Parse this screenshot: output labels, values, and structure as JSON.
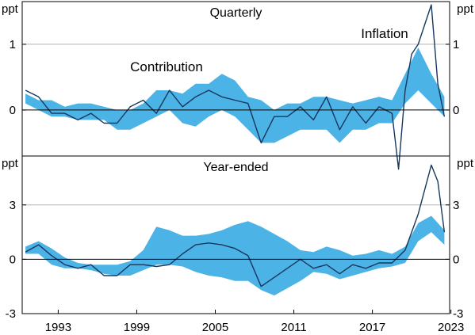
{
  "colors": {
    "band": "#4cb3e6",
    "line": "#17375e",
    "label_contribution": "#4cb3e6",
    "label_inflation": "#17375e",
    "grid": "#b3b3b3",
    "frame": "#000000"
  },
  "chart_data": {
    "type": "area",
    "x_ticks": [
      "1993",
      "1999",
      "2005",
      "2011",
      "2017",
      "2023"
    ],
    "x_range": [
      1990.75,
      2023.4
    ],
    "annotations": {
      "contribution": "Contribution",
      "inflation": "Inflation"
    },
    "panels": [
      {
        "key": "quarterly",
        "title": "Quarterly",
        "left_unit": "ppt",
        "right_unit": "ppt",
        "ylim": [
          -0.7,
          1.65
        ],
        "y_ticks": [
          {
            "v": 1,
            "label": "1"
          },
          {
            "v": 0,
            "label": "0"
          }
        ],
        "grid_at": [
          1
        ],
        "series": [
          {
            "name": "Inflation",
            "type": "line",
            "x": [
              1991.0,
              1992.0,
              1993.0,
              1994.0,
              1995.0,
              1996.0,
              1997.0,
              1998.0,
              1999.0,
              2000.0,
              2001.0,
              2002.0,
              2003.0,
              2004.0,
              2005.0,
              2006.0,
              2007.0,
              2008.0,
              2009.0,
              2010.0,
              2011.0,
              2012.0,
              2013.0,
              2014.0,
              2015.0,
              2016.0,
              2017.0,
              2018.0,
              2019.0,
              2019.5,
              2020.0,
              2020.5,
              2021.0,
              2021.5,
              2022.0,
              2022.5,
              2023.0
            ],
            "values": [
              0.3,
              0.2,
              -0.05,
              -0.05,
              -0.15,
              -0.05,
              -0.2,
              -0.2,
              0.05,
              0.15,
              -0.05,
              0.3,
              0.05,
              0.2,
              0.3,
              0.2,
              0.15,
              0.1,
              -0.5,
              -0.1,
              -0.1,
              0.05,
              -0.15,
              0.2,
              -0.3,
              0.05,
              -0.2,
              0.05,
              -0.05,
              -0.9,
              0.3,
              0.85,
              1.0,
              1.3,
              1.6,
              0.4,
              -0.1
            ]
          },
          {
            "name": "Contribution",
            "type": "band",
            "x": [
              1991.0,
              1992.0,
              1993.0,
              1994.0,
              1995.0,
              1996.0,
              1997.0,
              1998.0,
              1999.0,
              2000.0,
              2001.0,
              2002.0,
              2003.0,
              2004.0,
              2005.0,
              2006.0,
              2007.0,
              2008.0,
              2009.0,
              2010.0,
              2011.0,
              2012.0,
              2013.0,
              2014.0,
              2015.0,
              2016.0,
              2017.0,
              2018.0,
              2019.0,
              2020.0,
              2021.0,
              2022.0,
              2023.0
            ],
            "lower": [
              0.1,
              0.0,
              -0.1,
              -0.1,
              -0.15,
              -0.15,
              -0.15,
              -0.3,
              -0.3,
              -0.2,
              -0.1,
              0.0,
              -0.2,
              -0.25,
              -0.1,
              0.0,
              -0.1,
              -0.3,
              -0.5,
              -0.5,
              -0.4,
              -0.3,
              -0.3,
              -0.3,
              -0.5,
              -0.3,
              -0.3,
              -0.2,
              -0.2,
              0.1,
              0.3,
              0.1,
              -0.1
            ],
            "upper": [
              0.25,
              0.15,
              0.15,
              0.05,
              0.1,
              0.1,
              0.05,
              0.0,
              0.0,
              0.1,
              0.3,
              0.3,
              0.25,
              0.4,
              0.4,
              0.55,
              0.45,
              0.2,
              0.15,
              0.0,
              0.1,
              0.1,
              0.2,
              0.2,
              0.15,
              0.1,
              0.15,
              0.2,
              0.15,
              0.55,
              0.95,
              0.55,
              0.2
            ]
          }
        ]
      },
      {
        "key": "year_ended",
        "title": "Year-ended",
        "left_unit": "ppt",
        "right_unit": "ppt",
        "ylim": [
          -3,
          5.7
        ],
        "y_ticks": [
          {
            "v": 3,
            "label": "3"
          },
          {
            "v": 0,
            "label": "0"
          },
          {
            "v": -3,
            "label": "-3"
          }
        ],
        "grid_at": [
          3
        ],
        "series": [
          {
            "name": "Inflation",
            "type": "line",
            "x": [
              1991.0,
              1992.0,
              1993.0,
              1994.0,
              1995.0,
              1996.0,
              1997.0,
              1998.0,
              1999.0,
              2000.0,
              2001.0,
              2002.0,
              2003.0,
              2004.0,
              2005.0,
              2006.0,
              2007.0,
              2008.0,
              2009.0,
              2010.0,
              2011.0,
              2012.0,
              2013.0,
              2014.0,
              2015.0,
              2016.0,
              2017.0,
              2018.0,
              2019.0,
              2020.0,
              2021.0,
              2022.0,
              2022.5,
              2023.0
            ],
            "values": [
              0.4,
              0.8,
              0.2,
              -0.3,
              -0.5,
              -0.3,
              -0.9,
              -0.9,
              -0.3,
              -0.3,
              -0.4,
              -0.3,
              0.3,
              0.8,
              0.9,
              0.8,
              0.6,
              0.2,
              -1.5,
              -1.0,
              -0.5,
              0.0,
              -0.5,
              -0.3,
              -0.8,
              -0.3,
              -0.5,
              -0.2,
              -0.2,
              0.5,
              2.5,
              5.2,
              4.3,
              1.5
            ]
          },
          {
            "name": "Contribution",
            "type": "band",
            "x": [
              1991.0,
              1992.0,
              1993.0,
              1994.0,
              1995.0,
              1996.0,
              1997.0,
              1998.0,
              1999.0,
              2000.0,
              2001.0,
              2002.0,
              2003.0,
              2004.0,
              2005.0,
              2006.0,
              2007.0,
              2008.0,
              2009.0,
              2010.0,
              2011.0,
              2012.0,
              2013.0,
              2014.0,
              2015.0,
              2016.0,
              2017.0,
              2018.0,
              2019.0,
              2020.0,
              2021.0,
              2022.0,
              2023.0
            ],
            "lower": [
              0.3,
              0.3,
              -0.3,
              -0.5,
              -0.5,
              -0.6,
              -0.8,
              -0.9,
              -0.9,
              -0.6,
              -0.3,
              -0.3,
              -0.4,
              -0.7,
              -0.9,
              -1.0,
              -1.2,
              -1.2,
              -1.7,
              -2.0,
              -1.6,
              -1.2,
              -0.7,
              -0.8,
              -1.1,
              -0.9,
              -0.7,
              -0.5,
              -0.4,
              -0.2,
              1.0,
              1.5,
              0.8
            ],
            "upper": [
              0.7,
              1.0,
              0.6,
              0.1,
              -0.2,
              -0.3,
              -0.3,
              -0.3,
              -0.1,
              0.5,
              1.8,
              1.6,
              1.3,
              1.3,
              1.4,
              1.6,
              1.9,
              2.1,
              1.8,
              1.4,
              1.0,
              0.5,
              0.4,
              0.7,
              0.5,
              0.2,
              0.3,
              0.5,
              0.3,
              0.7,
              2.0,
              2.4,
              1.6
            ]
          }
        ]
      }
    ]
  }
}
